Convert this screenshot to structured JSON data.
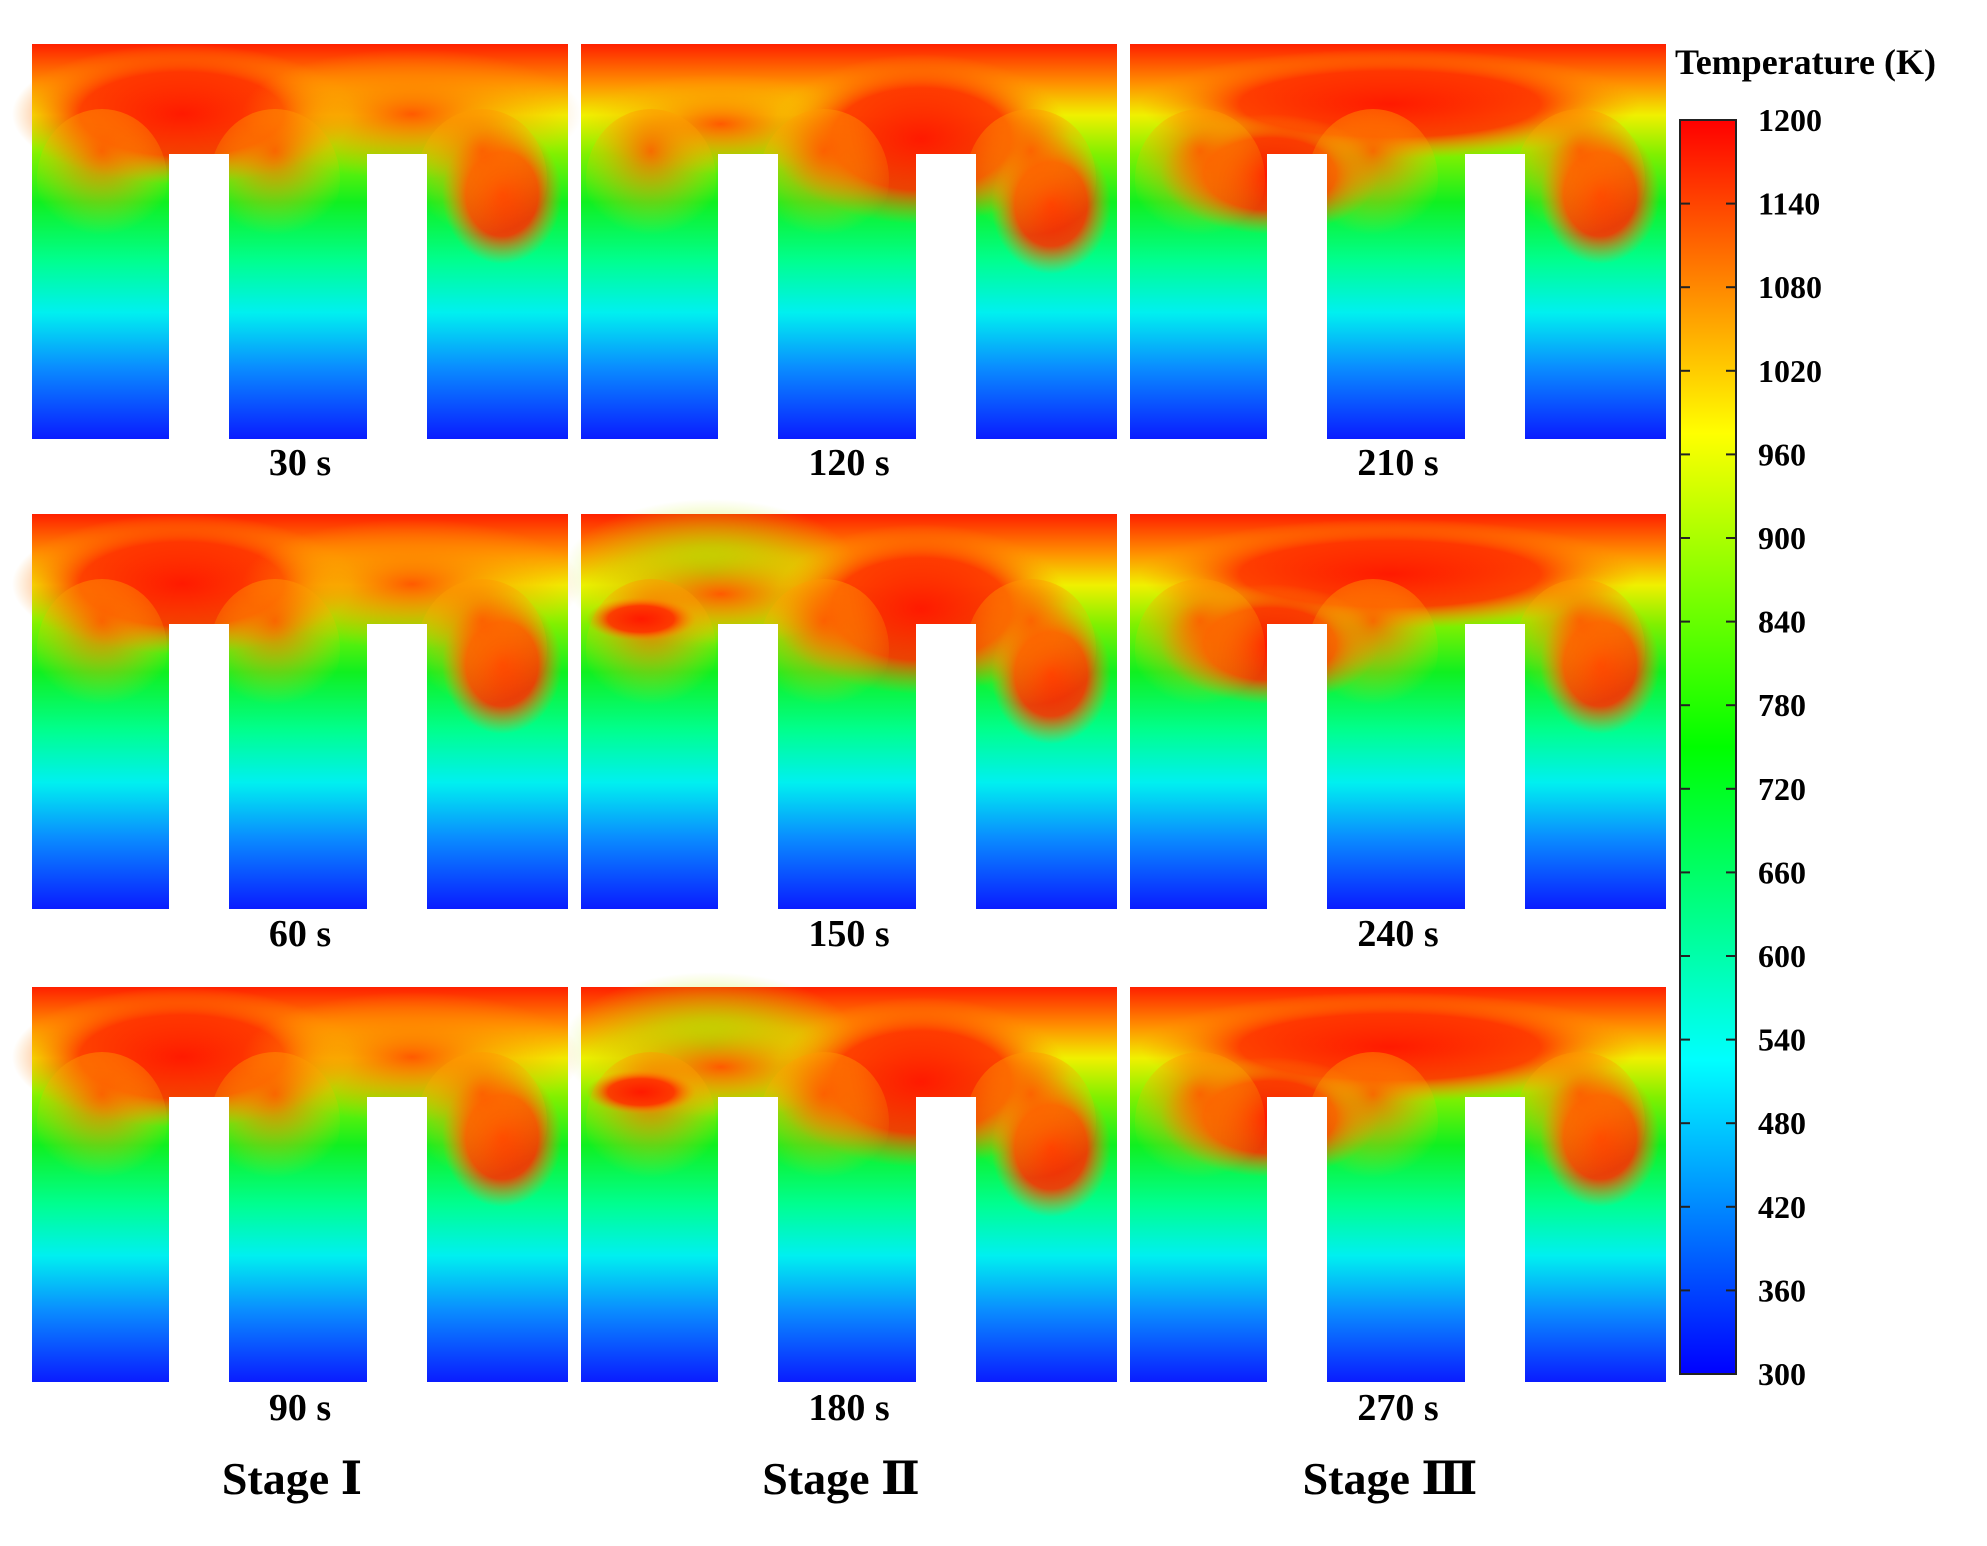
{
  "chart_data": {
    "type": "heatmap",
    "colorbar": {
      "title": "Temperature (K)",
      "min": 300,
      "max": 1200,
      "ticks": [
        1200,
        1140,
        1080,
        1020,
        960,
        900,
        840,
        780,
        720,
        660,
        600,
        540,
        480,
        420,
        360,
        300
      ],
      "colors": [
        "#0000ff",
        "#0080ff",
        "#00ffff",
        "#00ff80",
        "#00ff00",
        "#80ff00",
        "#ffff00",
        "#ff8000",
        "#ff0000"
      ]
    },
    "columns": [
      {
        "stage": "Stage  Ⅰ",
        "times": [
          "30 s",
          "60 s",
          "90 s"
        ]
      },
      {
        "stage": "Stage  Ⅱ",
        "times": [
          "120 s",
          "150 s",
          "180 s"
        ]
      },
      {
        "stage": "Stage  Ⅲ",
        "times": [
          "210 s",
          "240 s",
          "270 s"
        ]
      }
    ]
  }
}
